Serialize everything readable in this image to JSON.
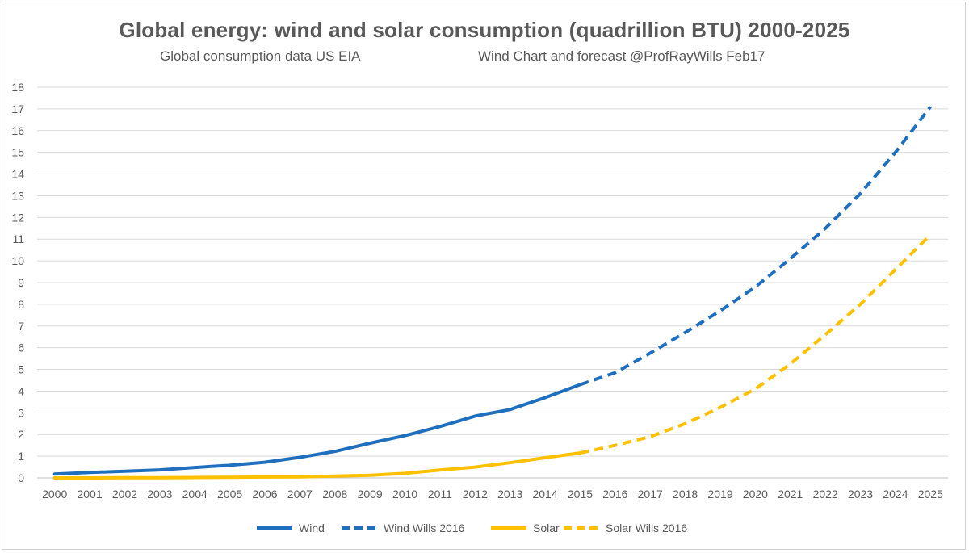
{
  "chart_data": {
    "type": "line",
    "title": "Global energy: wind and solar consumption (quadrillion BTU) 2000-2025",
    "subtitle_left": "Global consumption data US EIA",
    "subtitle_right": "Wind Chart and forecast @ProfRayWills Feb17",
    "xlabel": "",
    "ylabel": "",
    "ylim": [
      0,
      18
    ],
    "yticks": [
      0,
      1,
      2,
      3,
      4,
      5,
      6,
      7,
      8,
      9,
      10,
      11,
      12,
      13,
      14,
      15,
      16,
      17,
      18
    ],
    "categories": [
      "2000",
      "2001",
      "2002",
      "2003",
      "2004",
      "2005",
      "2006",
      "2007",
      "2008",
      "2009",
      "2010",
      "2011",
      "2012",
      "2013",
      "2014",
      "2015",
      "2016",
      "2017",
      "2018",
      "2019",
      "2020",
      "2021",
      "2022",
      "2023",
      "2024",
      "2025"
    ],
    "grid": "horizontal",
    "legend_position": "bottom",
    "series": [
      {
        "name": "Wind",
        "color": "#1F6FBF",
        "style": "solid",
        "x": [
          "2000",
          "2001",
          "2002",
          "2003",
          "2004",
          "2005",
          "2006",
          "2007",
          "2008",
          "2009",
          "2010",
          "2011",
          "2012",
          "2013",
          "2014",
          "2015"
        ],
        "values": [
          0.18,
          0.25,
          0.31,
          0.37,
          0.48,
          0.58,
          0.72,
          0.95,
          1.22,
          1.6,
          1.95,
          2.37,
          2.85,
          3.15,
          3.7,
          4.3
        ]
      },
      {
        "name": "Wind Wills 2016",
        "color": "#1F6FBF",
        "style": "dashed",
        "x": [
          "2015",
          "2016",
          "2017",
          "2018",
          "2019",
          "2020",
          "2021",
          "2022",
          "2023",
          "2024",
          "2025"
        ],
        "values": [
          4.3,
          4.85,
          5.75,
          6.7,
          7.7,
          8.8,
          10.1,
          11.5,
          13.1,
          15.0,
          17.1
        ]
      },
      {
        "name": "Solar",
        "color": "#FFC000",
        "style": "solid",
        "x": [
          "2000",
          "2001",
          "2002",
          "2003",
          "2004",
          "2005",
          "2006",
          "2007",
          "2008",
          "2009",
          "2010",
          "2011",
          "2012",
          "2013",
          "2014",
          "2015"
        ],
        "values": [
          0.0,
          0.0,
          0.01,
          0.01,
          0.02,
          0.03,
          0.04,
          0.05,
          0.08,
          0.12,
          0.21,
          0.36,
          0.5,
          0.7,
          0.93,
          1.15
        ]
      },
      {
        "name": "Solar Wills 2016",
        "color": "#FFC000",
        "style": "dashed",
        "x": [
          "2015",
          "2016",
          "2017",
          "2018",
          "2019",
          "2020",
          "2021",
          "2022",
          "2023",
          "2024",
          "2025"
        ],
        "values": [
          1.15,
          1.5,
          1.9,
          2.5,
          3.25,
          4.1,
          5.25,
          6.6,
          8.0,
          9.6,
          11.2
        ]
      }
    ]
  }
}
